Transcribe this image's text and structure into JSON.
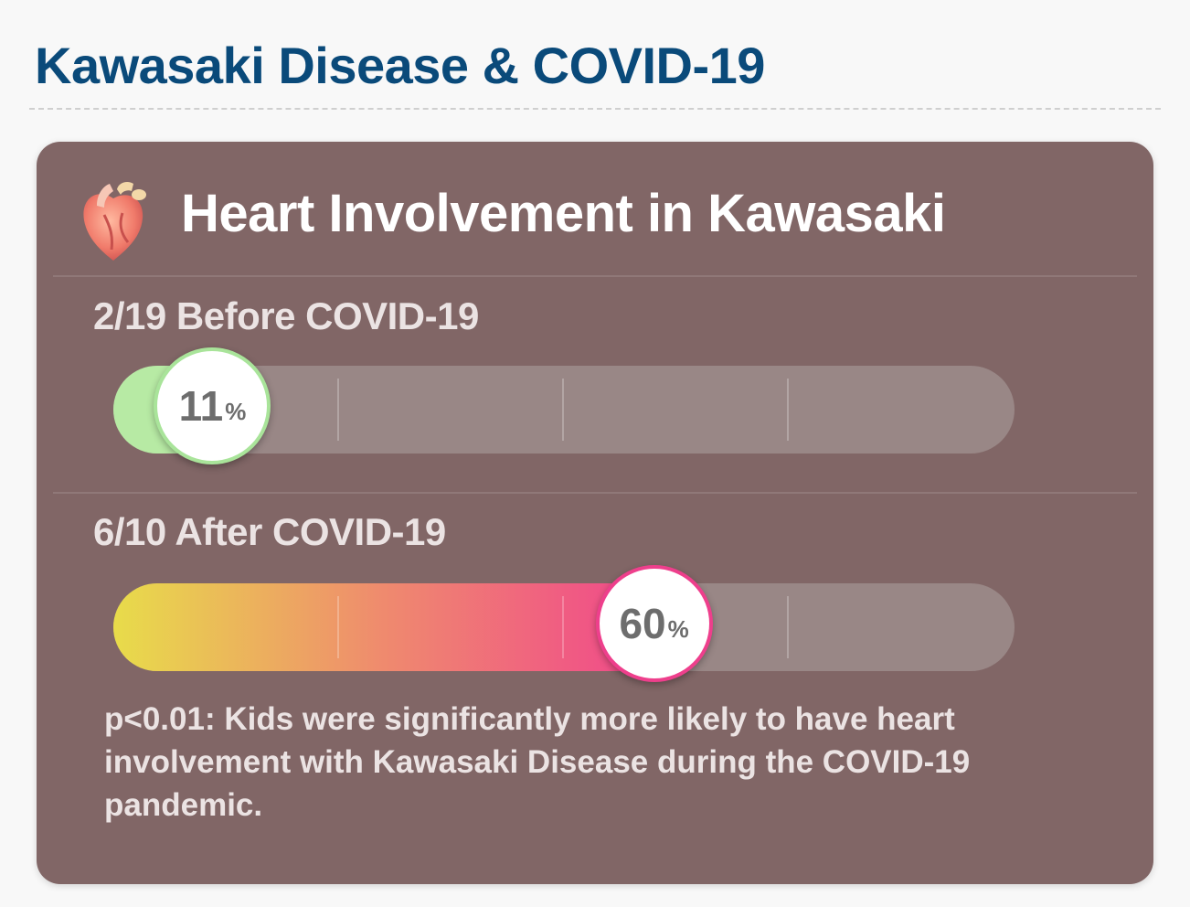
{
  "page": {
    "title": "Kawasaki Disease & COVID-19"
  },
  "card": {
    "title": "Heart Involvement in Kawasaki",
    "icon": "heart-organ-icon",
    "background": "#816666",
    "note": "p<0.01: Kids were significantly more likely to have heart involvement with Kawasaki Disease during the COVID-19 pandemic."
  },
  "chart_data": {
    "type": "bar",
    "orientation": "horizontal",
    "ylim": [
      0,
      100
    ],
    "categories": [
      "2/19 Before COVID-19",
      "6/10 After COVID-19"
    ],
    "values": [
      11,
      60
    ],
    "unit": "%",
    "colors": {
      "before_fill": "#b7eaa4",
      "before_border": "#a9e49a",
      "after_gradient": [
        "#e8dc4a",
        "#ef8a6e",
        "#f0468c"
      ],
      "after_border": "#ee3f8c",
      "track": "#998786"
    },
    "bars": [
      {
        "label": "2/19 Before COVID-19",
        "value": 11,
        "display": "11",
        "unit": "%"
      },
      {
        "label": "6/10 After COVID-19",
        "value": 60,
        "display": "60",
        "unit": "%"
      }
    ]
  }
}
